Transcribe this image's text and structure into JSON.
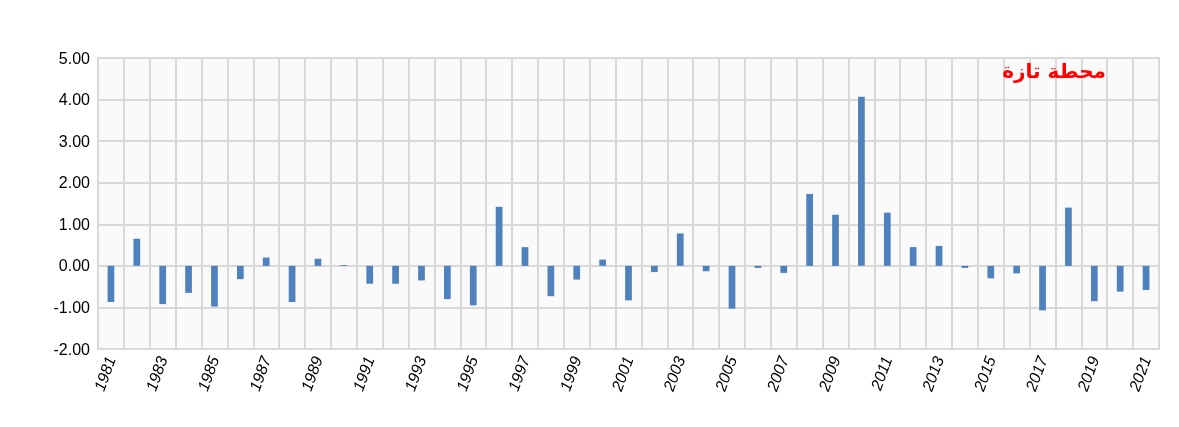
{
  "chart_data": {
    "type": "bar",
    "title": "محطة تازة",
    "categories": [
      "1981",
      null,
      "1983",
      null,
      "1985",
      null,
      "1987",
      null,
      "1989",
      null,
      "1991",
      null,
      "1993",
      null,
      "1995",
      null,
      "1997",
      null,
      "1999",
      null,
      "2001",
      null,
      "2003",
      null,
      "2005",
      null,
      "2007",
      null,
      "2009",
      null,
      "2011",
      null,
      "2013",
      null,
      "2015",
      null,
      "2017",
      null,
      "2019",
      null,
      "2021"
    ],
    "values": [
      -0.87,
      0.65,
      -0.92,
      -0.65,
      -0.98,
      -0.32,
      0.2,
      -0.87,
      0.17,
      0.02,
      -0.43,
      -0.43,
      -0.35,
      -0.8,
      -0.95,
      1.42,
      0.45,
      -0.73,
      -0.33,
      0.15,
      -0.83,
      -0.15,
      0.78,
      -0.13,
      -1.03,
      -0.05,
      -0.17,
      1.73,
      1.23,
      4.07,
      1.28,
      0.45,
      0.48,
      -0.05,
      -0.3,
      -0.18,
      -1.07,
      1.4,
      -0.85,
      -0.62,
      -0.58
    ],
    "color": "#4f81bd",
    "ylim": [
      -2,
      5
    ],
    "yticks": [
      {
        "value": -2,
        "label": "-2.00"
      },
      {
        "value": -1,
        "label": "-1.00"
      },
      {
        "value": 0,
        "label": "0.00"
      },
      {
        "value": 1,
        "label": "1.00"
      },
      {
        "value": 2,
        "label": "2.00"
      },
      {
        "value": 3,
        "label": "3.00"
      },
      {
        "value": 4,
        "label": "4.00"
      },
      {
        "value": 5,
        "label": "5.00"
      }
    ],
    "grid": true
  }
}
